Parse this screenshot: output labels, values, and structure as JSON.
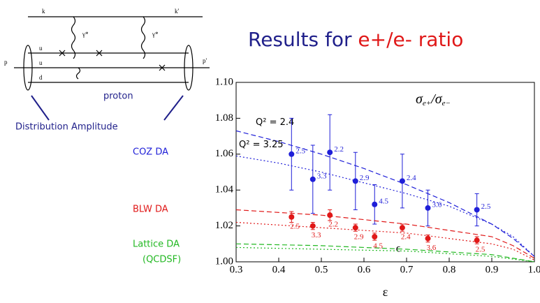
{
  "title_parts": [
    "Results for",
    "e+/e- ratio"
  ],
  "diagram": {
    "k": "k",
    "k_out": "k'",
    "p": "p",
    "p_out": "p'",
    "gamma1": "γ*",
    "gamma2": "γ*",
    "quarks": [
      "u",
      "u",
      "d"
    ],
    "caption": "proton",
    "note": "Distribution Amplitude"
  },
  "chart_data": {
    "type": "scatter",
    "xlabel": "ε",
    "ylabel_parts": [
      "σ",
      "e+",
      "/σ",
      "e−"
    ],
    "annotation": "ϵ",
    "xlim": [
      0.3,
      1.0
    ],
    "xticks": [
      0.3,
      0.4,
      0.5,
      0.6,
      0.7,
      0.8,
      0.9,
      {
        "value": 1.0,
        "label": "1.0"
      }
    ],
    "ylim": [
      1.0,
      1.1
    ],
    "yticks": [
      {
        "value": 1.0,
        "label": "1.00"
      },
      1.02,
      1.04,
      1.06,
      1.08,
      {
        "value": 1.1,
        "label": "1.10"
      }
    ],
    "series": [
      {
        "name": "COZ DA",
        "color": "#1f1fd8",
        "points": {
          "x": [
            0.43,
            0.48,
            0.52,
            0.58,
            0.625,
            0.69,
            0.75,
            0.865
          ],
          "values": [
            1.06,
            1.046,
            1.061,
            1.045,
            1.032,
            1.045,
            1.03,
            1.029
          ],
          "errors": [
            0.02,
            0.019,
            0.021,
            0.016,
            0.011,
            0.015,
            0.01,
            0.009
          ],
          "point_labels": [
            "2.5",
            "3.3",
            "2.2",
            "2.9",
            "4.5",
            "2.4",
            "3.6",
            "2.5"
          ]
        },
        "curves": [
          {
            "label": "Q² = 2.4",
            "style": "dashed",
            "x": [
              0.3,
              0.4,
              0.5,
              0.6,
              0.7,
              0.8,
              0.9,
              0.95,
              1.0
            ],
            "values": [
              1.073,
              1.067,
              1.06,
              1.052,
              1.043,
              1.033,
              1.021,
              1.013,
              1.003
            ]
          },
          {
            "label": "Q² = 3.25",
            "style": "dotted",
            "x": [
              0.3,
              0.4,
              0.5,
              0.6,
              0.7,
              0.8,
              0.9,
              0.95,
              1.0
            ],
            "values": [
              1.059,
              1.055,
              1.05,
              1.044,
              1.038,
              1.031,
              1.021,
              1.014,
              1.003
            ]
          }
        ]
      },
      {
        "name": "BLW DA",
        "color": "#e01818",
        "points": {
          "x": [
            0.43,
            0.48,
            0.52,
            0.58,
            0.625,
            0.69,
            0.75,
            0.865
          ],
          "values": [
            1.025,
            1.02,
            1.026,
            1.019,
            1.014,
            1.019,
            1.013,
            1.012
          ],
          "errors": [
            0.003,
            0.002,
            0.003,
            0.002,
            0.002,
            0.002,
            0.002,
            0.002
          ],
          "point_labels": [
            "2.5",
            "3.3",
            "2.2",
            "2.9",
            "4.5",
            "2.4",
            "3.6",
            "2.5"
          ]
        },
        "curves": [
          {
            "style": "dashed",
            "x": [
              0.3,
              0.5,
              0.7,
              0.9,
              0.95,
              1.0
            ],
            "values": [
              1.029,
              1.026,
              1.021,
              1.014,
              1.009,
              1.002
            ]
          },
          {
            "style": "dotted",
            "x": [
              0.3,
              0.5,
              0.7,
              0.9,
              0.95,
              1.0
            ],
            "values": [
              1.022,
              1.019,
              1.016,
              1.01,
              1.007,
              1.001
            ]
          }
        ]
      },
      {
        "name": "Lattice DA",
        "subname": "(QCDSF)",
        "color": "#22b822",
        "curves": [
          {
            "style": "dashed",
            "x": [
              0.3,
              0.5,
              0.7,
              0.9,
              1.0
            ],
            "values": [
              1.01,
              1.009,
              1.007,
              1.004,
              1.0
            ]
          },
          {
            "style": "dotted",
            "x": [
              0.3,
              0.5,
              0.7,
              0.9,
              1.0
            ],
            "values": [
              1.008,
              1.007,
              1.006,
              1.003,
              1.0
            ]
          }
        ]
      }
    ]
  }
}
